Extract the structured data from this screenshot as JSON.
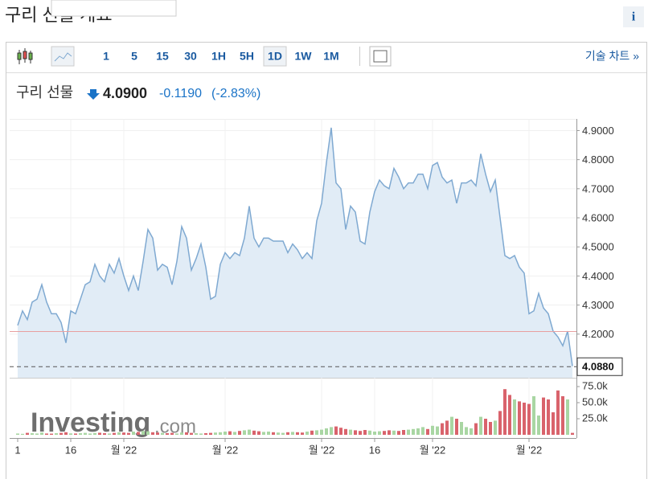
{
  "page_title": "구리 선물 개요",
  "info_icon": "i",
  "toolbar": {
    "intervals": [
      "1",
      "5",
      "15",
      "30",
      "1H",
      "5H",
      "1D",
      "1W",
      "1M"
    ],
    "active": "1D",
    "tech_chart": "기술 차트 »"
  },
  "quote": {
    "name": "구리 선물",
    "price": "4.0900",
    "change": "-0.1190",
    "change_pct": "(-2.83%)"
  },
  "chart_data": {
    "type": "line",
    "watermark": "Investing",
    "watermark_suffix": ".com",
    "categories": [
      "1",
      null,
      null,
      null,
      null,
      null,
      null,
      null,
      null,
      null,
      null,
      "16",
      null,
      null,
      null,
      null,
      null,
      null,
      null,
      null,
      null,
      null,
      "월 '22",
      null,
      null,
      null,
      null,
      null,
      null,
      null,
      null,
      null,
      null,
      null,
      null,
      null,
      null,
      null,
      null,
      null,
      null,
      null,
      null,
      "월 '22",
      null,
      null,
      null,
      null,
      null,
      null,
      null,
      null,
      null,
      null,
      null,
      null,
      null,
      null,
      null,
      null,
      null,
      null,
      null,
      "월 '22",
      null,
      null,
      null,
      null,
      null,
      null,
      null,
      null,
      null,
      null,
      "16",
      null,
      null,
      null,
      null,
      null,
      null,
      null,
      null,
      null,
      null,
      null,
      "월 '22",
      null,
      null,
      null,
      null,
      null,
      null,
      null,
      null,
      null,
      null,
      null,
      null,
      null,
      null,
      null,
      null,
      null,
      null,
      null,
      "월 '22",
      null,
      null,
      null,
      null,
      null,
      null,
      null,
      null,
      null
    ],
    "series": [
      {
        "name": "price",
        "color": "#7fa9d1",
        "fill": "#e1ecf6",
        "values": [
          4.23,
          4.28,
          4.25,
          4.31,
          4.32,
          4.37,
          4.31,
          4.27,
          4.27,
          4.24,
          4.17,
          4.28,
          4.27,
          4.32,
          4.37,
          4.38,
          4.44,
          4.4,
          4.38,
          4.44,
          4.41,
          4.46,
          4.4,
          4.35,
          4.4,
          4.35,
          4.45,
          4.56,
          4.53,
          4.42,
          4.44,
          4.43,
          4.37,
          4.45,
          4.57,
          4.53,
          4.42,
          4.46,
          4.51,
          4.43,
          4.32,
          4.33,
          4.44,
          4.48,
          4.46,
          4.48,
          4.47,
          4.53,
          4.64,
          4.53,
          4.5,
          4.53,
          4.53,
          4.52,
          4.52,
          4.52,
          4.48,
          4.51,
          4.49,
          4.46,
          4.48,
          4.46,
          4.59,
          4.65,
          4.79,
          4.91,
          4.72,
          4.7,
          4.56,
          4.64,
          4.62,
          4.52,
          4.51,
          4.62,
          4.69,
          4.73,
          4.71,
          4.7,
          4.77,
          4.74,
          4.7,
          4.72,
          4.72,
          4.75,
          4.75,
          4.7,
          4.78,
          4.79,
          4.74,
          4.72,
          4.73,
          4.65,
          4.72,
          4.72,
          4.73,
          4.71,
          4.82,
          4.75,
          4.69,
          4.73,
          4.6,
          4.47,
          4.46,
          4.47,
          4.43,
          4.41,
          4.27,
          4.28,
          4.34,
          4.29,
          4.27,
          4.21,
          4.19,
          4.16,
          4.21,
          4.09
        ]
      },
      {
        "name": "volume",
        "axis": "y2",
        "up_color": "#a9d6a3",
        "down_color": "#d9636c",
        "values": [
          2000,
          1500,
          3000,
          2500,
          2000,
          3500,
          2000,
          1800,
          2500,
          3000,
          4000,
          2200,
          2000,
          2500,
          3000,
          2000,
          2800,
          3200,
          2500,
          2000,
          3000,
          4000,
          3500,
          3000,
          5000,
          4500,
          6000,
          5500,
          4000,
          3500,
          3000,
          2500,
          3000,
          2000,
          3500,
          4000,
          3000,
          2500,
          2000,
          2500,
          3000,
          3500,
          4000,
          5000,
          5500,
          4500,
          6000,
          7000,
          8000,
          6500,
          5500,
          4500,
          5000,
          4000,
          3500,
          3000,
          4000,
          4500,
          4000,
          3500,
          5000,
          6500,
          7000,
          8000,
          10000,
          12000,
          13000,
          11000,
          9000,
          8000,
          7000,
          6000,
          7500,
          6500,
          5000,
          5500,
          6000,
          7000,
          6500,
          6000,
          7500,
          8000,
          9000,
          10000,
          12000,
          9000,
          14000,
          13000,
          18000,
          22000,
          28000,
          25000,
          20000,
          12000,
          10000,
          18000,
          28000,
          25000,
          20000,
          22000,
          37000,
          71000,
          62000,
          55000,
          52000,
          50000,
          48000,
          60000,
          30000,
          58000,
          55000,
          35000,
          69000,
          60000,
          55000,
          3000
        ]
      }
    ],
    "ylim": [
      4.05,
      4.94
    ],
    "yticks": [
      {
        "value": 4.2,
        "label": "4.2000"
      },
      {
        "value": 4.3,
        "label": "4.3000"
      },
      {
        "value": 4.4,
        "label": "4.4000"
      },
      {
        "value": 4.5,
        "label": "4.5000"
      },
      {
        "value": 4.6,
        "label": "4.6000"
      },
      {
        "value": 4.7,
        "label": "4.7000"
      },
      {
        "value": 4.8,
        "label": "4.8000"
      },
      {
        "value": 4.9,
        "label": "4.9000"
      }
    ],
    "y2lim": [
      0,
      82500
    ],
    "y2ticks": [
      {
        "value": 25000,
        "label": "25.0k"
      },
      {
        "value": 50000,
        "label": "50.0k"
      },
      {
        "value": 75000,
        "label": "75.0k"
      }
    ],
    "reference_line": {
      "value": 4.209,
      "color": "#e8a0a0"
    },
    "last_value": {
      "value": 4.088,
      "label": "4.0880"
    },
    "grid": true
  }
}
